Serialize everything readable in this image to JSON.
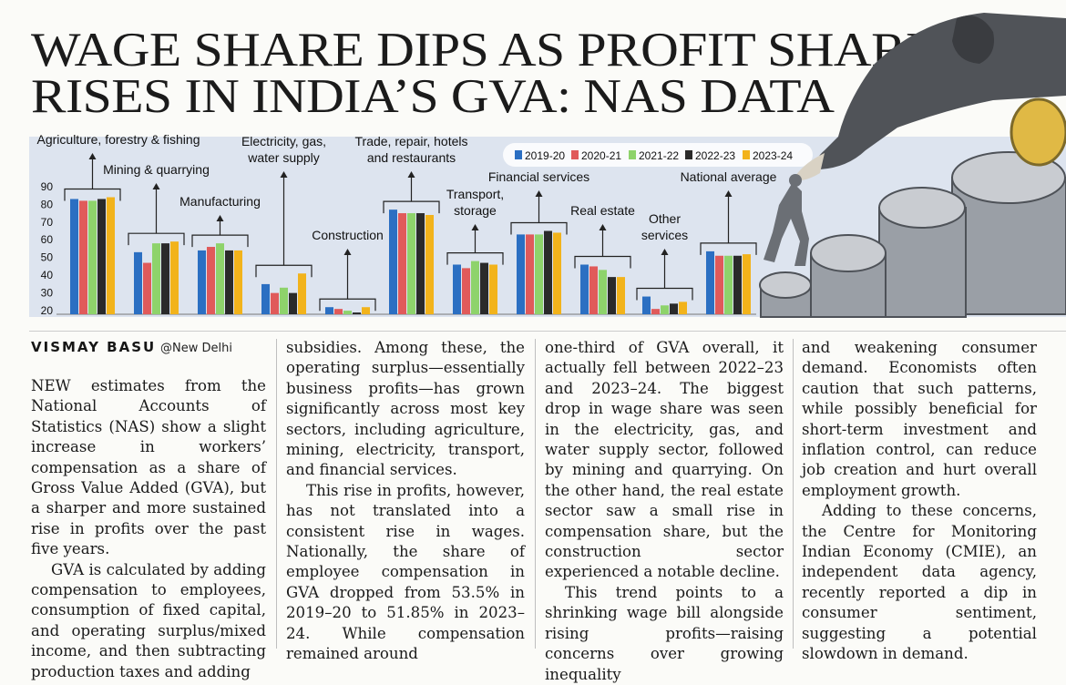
{
  "headline": {
    "line1": "WAGE SHARE DIPS AS PROFIT SHARE",
    "line2": "RISES IN INDIA’S GVA: NAS DATA"
  },
  "chart_data": {
    "type": "bar",
    "categories": [
      "Agriculture, forestry & fishing",
      "Mining & quarrying",
      "Manufacturing",
      "Electricity, gas, water supply",
      "Construction",
      "Trade, repair, hotels and restaurants",
      "Transport, storage",
      "Financial services",
      "Real estate",
      "Other services",
      "National average"
    ],
    "series": [
      {
        "name": "2019-20",
        "color": "#2b6fc2",
        "values": [
          83,
          53,
          54,
          35,
          22,
          77,
          46,
          63,
          46,
          28,
          53.5
        ]
      },
      {
        "name": "2020-21",
        "color": "#e05a5a",
        "values": [
          82,
          47,
          56,
          30,
          21,
          75,
          44,
          63,
          45,
          21,
          51
        ]
      },
      {
        "name": "2021-22",
        "color": "#8ed36b",
        "values": [
          82,
          58,
          58,
          33,
          20,
          75,
          48,
          63,
          43,
          23,
          51
        ]
      },
      {
        "name": "2022-23",
        "color": "#2a2a2a",
        "values": [
          83,
          58,
          54,
          30,
          19,
          75,
          47,
          65,
          39,
          24,
          51
        ]
      },
      {
        "name": "2023-24",
        "color": "#f2b31b",
        "values": [
          84,
          59,
          54,
          41,
          22,
          74,
          46,
          64,
          39,
          25,
          51.85
        ]
      }
    ],
    "yticks": [
      "90",
      "80",
      "70",
      "60",
      "50",
      "40",
      "30",
      "20"
    ],
    "ylim": [
      18,
      93
    ],
    "labels": [
      {
        "lines": [
          "Agriculture, forestry & fishing"
        ]
      },
      {
        "lines": [
          "Mining & quarrying"
        ]
      },
      {
        "lines": [
          "Manufacturing"
        ]
      },
      {
        "lines": [
          "Electricity, gas,",
          "water supply"
        ]
      },
      {
        "lines": [
          "Construction"
        ]
      },
      {
        "lines": [
          "Trade, repair, hotels",
          "and restaurants"
        ]
      },
      {
        "lines": [
          "Transport,",
          "storage"
        ]
      },
      {
        "lines": [
          "Financial services"
        ]
      },
      {
        "lines": [
          "Real estate"
        ]
      },
      {
        "lines": [
          "Other",
          "services"
        ]
      },
      {
        "lines": [
          "National average"
        ]
      }
    ],
    "legend_placement": "top-right",
    "grid": false
  },
  "byline": {
    "author": "VISMAY BASU",
    "location": "@New Delhi"
  },
  "columns": {
    "c1": [
      "NEW estimates from the National Accounts of Statistics (NAS) show a slight increase in workers’ compensation as a share of Gross Value Added (GVA), but a sharper and more sustained rise in profits over the past five years.",
      "GVA is calculated by adding compensation to employees, consumption of fixed capital, and operating surplus/mixed income, and then subtracting production taxes and adding"
    ],
    "c2": [
      "subsidies. Among these, the operating surplus—essentially business profits—has grown significantly across most key sectors, including agriculture, mining, electricity, transport, and financial services.",
      "This rise in profits, however, has not translated into a consistent rise in wages. Nationally, the share of employee compensation in GVA dropped from 53.5% in 2019–20 to 51.85% in 2023–24. While compensation remained around"
    ],
    "c3": [
      "one-third of GVA overall, it actually fell between 2022–23 and 2023–24. The biggest drop in wage share was seen in the electricity, gas, and water supply sector, followed by mining and quarrying. On the other hand, the real estate sector saw a small rise in compensation share, but the construction sector experienced a notable decline.",
      "This trend points to a shrinking wage bill alongside rising profits—raising concerns over growing inequality"
    ],
    "c4": [
      "and weakening consumer demand. Economists often caution that such patterns, while possibly beneficial for short-term investment and inflation control, can reduce job creation and hurt overall employment growth.",
      "Adding to these concerns, the Centre for Monitoring Indian Economy (CMIE), an independent data agency, recently reported a dip in consumer sentiment, suggesting a potential slowdown in demand."
    ]
  }
}
